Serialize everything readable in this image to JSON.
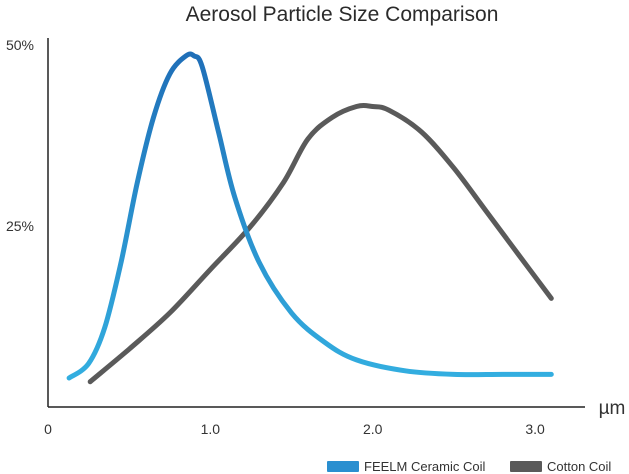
{
  "chart_data": {
    "type": "line",
    "title": "Aerosol Particle Size Comparison",
    "xlabel": "µm",
    "ylabel": "",
    "xlim": [
      0,
      3.4
    ],
    "ylim": [
      0,
      50
    ],
    "x_ticks": [
      {
        "value": 0,
        "label": "0"
      },
      {
        "value": 1.0,
        "label": "1.0"
      },
      {
        "value": 2.0,
        "label": "2.0"
      },
      {
        "value": 3.0,
        "label": "3.0"
      }
    ],
    "y_ticks": [
      {
        "value": 25,
        "label": "25%"
      },
      {
        "value": 50,
        "label": "50%"
      }
    ],
    "grid": false,
    "legend_position": "bottom-right",
    "series": [
      {
        "name": "FEELM Ceramic Coil",
        "color": "#2a8fd0",
        "x": [
          0.13,
          0.25,
          0.35,
          0.45,
          0.55,
          0.65,
          0.75,
          0.85,
          0.9,
          0.95,
          1.05,
          1.15,
          1.3,
          1.5,
          1.7,
          1.9,
          2.2,
          2.5,
          2.8,
          3.1
        ],
        "y": [
          4,
          6,
          11,
          20,
          31,
          40,
          46,
          48.5,
          48.5,
          47,
          38,
          29,
          20,
          13,
          9,
          6.5,
          5,
          4.5,
          4.5,
          4.5
        ]
      },
      {
        "name": "Cotton Coil",
        "color": "#5a5a5a",
        "x": [
          0.26,
          0.5,
          0.75,
          1.0,
          1.25,
          1.45,
          1.6,
          1.75,
          1.9,
          2.0,
          2.1,
          2.3,
          2.5,
          2.7,
          2.9,
          3.1
        ],
        "y": [
          3.5,
          8,
          13,
          19,
          25,
          31,
          37,
          40,
          41.5,
          41.5,
          41,
          38,
          33,
          27,
          21,
          15
        ]
      }
    ]
  }
}
